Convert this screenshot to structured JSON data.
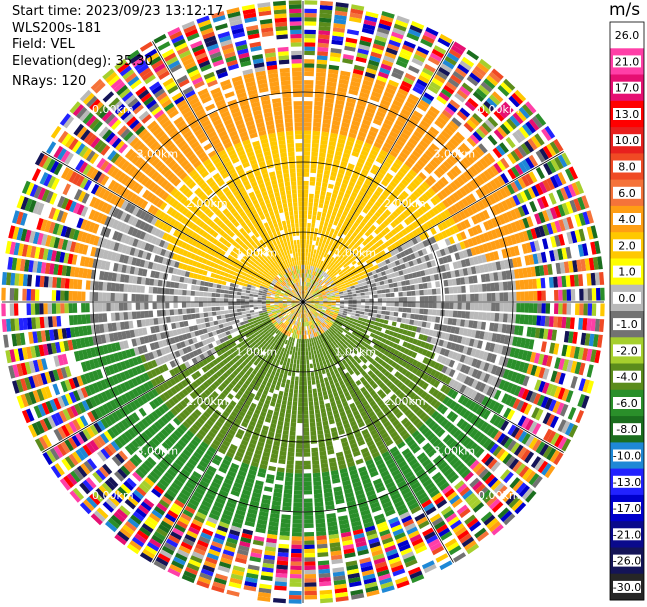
{
  "header": {
    "start_time": "Start time: 2023/09/23 13:12:17",
    "instrument": "WLS200s-181",
    "field": "Field: VEL",
    "elevation": "Elevation(deg): 35.30",
    "nrays": "NRays: 120"
  },
  "chart_data": {
    "type": "heatmap",
    "projection": "polar-ppi",
    "field": "VEL",
    "units": "m/s",
    "nrays": 120,
    "range_rings_km": [
      1.0,
      2.0,
      3.0
    ],
    "range_ring_labels": [
      "1.00km",
      "2.00km",
      "3.00km"
    ],
    "outer_label_text": "0.00km",
    "max_range_km": 4.3,
    "colorbar": {
      "title": "m/s",
      "ticks": [
        "26.0",
        "21.0",
        "17.0",
        "13.0",
        "10.0",
        "8.0",
        "6.0",
        "4.0",
        "2.0",
        "1.0",
        "0.0",
        "-1.0",
        "-2.0",
        "-4.0",
        "-6.0",
        "-8.0",
        "-10.0",
        "-13.0",
        "-17.0",
        "-21.0",
        "-26.0",
        "-30.0"
      ],
      "colors": [
        "#ffffff",
        "#ff3fa7",
        "#e60f72",
        "#ff0000",
        "#e8201e",
        "#f04a24",
        "#f5733a",
        "#ff9e14",
        "#ffc800",
        "#ffff00",
        "#b9b9b9",
        "#727272",
        "#a6cf2d",
        "#5b8c1c",
        "#2a8f2a",
        "#1b6e1e",
        "#1e88d6",
        "#2222ff",
        "#0000cc",
        "#0a0a8c",
        "#141457",
        "#262626"
      ]
    },
    "regions": [
      {
        "range_km": [
          0.0,
          0.5
        ],
        "note": "mixed near-zero",
        "values": [
          -2.0,
          0.0,
          2.0,
          4.0
        ]
      },
      {
        "range_km": [
          0.5,
          1.5
        ],
        "north_value": 3.0,
        "south_value": -3.0,
        "gray_band_value": 0.0
      },
      {
        "range_km": [
          1.5,
          2.5
        ],
        "north_value": 3.0,
        "south_value": -3.0
      },
      {
        "range_km": [
          2.5,
          3.3
        ],
        "north_value": 4.0,
        "south_value": -4.0
      },
      {
        "range_km": [
          3.3,
          4.3
        ],
        "note": "noise"
      }
    ]
  }
}
